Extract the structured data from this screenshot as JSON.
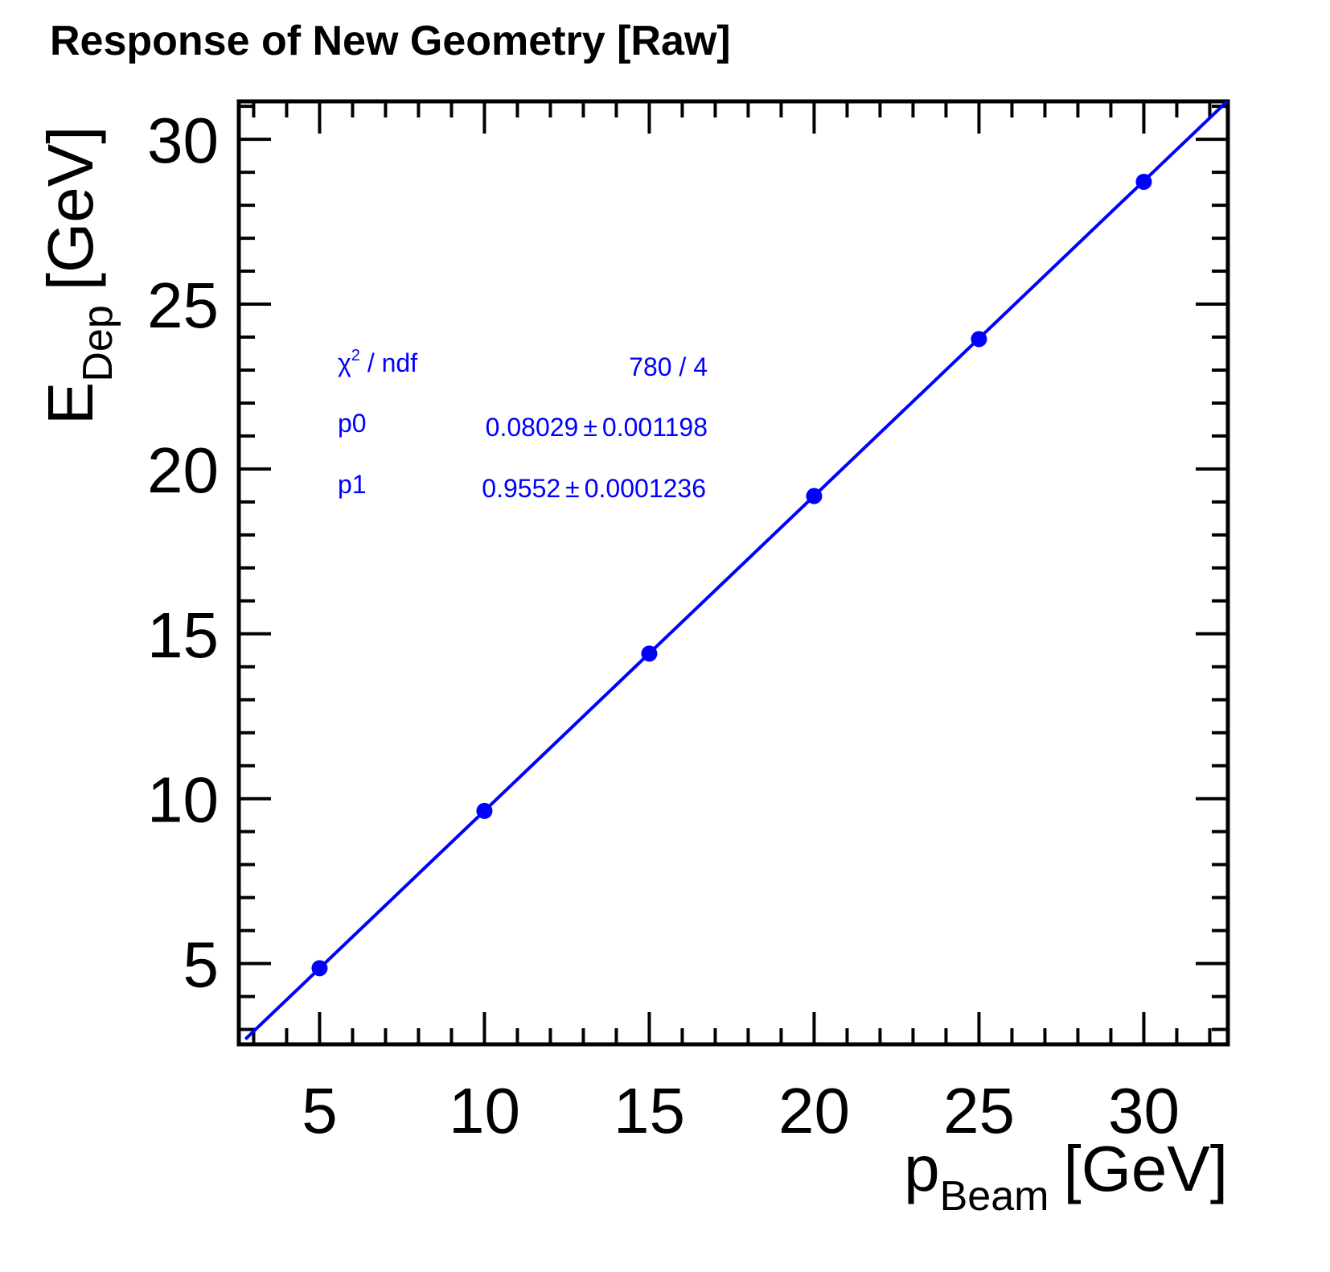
{
  "chart_data": {
    "type": "scatter",
    "title": "Response of New Geometry [Raw]",
    "xlabel": {
      "main": "p",
      "sub": "Beam",
      "unit": "[GeV]"
    },
    "ylabel": {
      "main": "E",
      "sub": "Dep",
      "unit": "[GeV]"
    },
    "xlim": [
      2.55,
      32.55
    ],
    "ylim": [
      2.55,
      31.15
    ],
    "x_major_ticks": [
      5,
      10,
      15,
      20,
      25,
      30
    ],
    "y_major_ticks": [
      5,
      10,
      15,
      20,
      25,
      30
    ],
    "x_tick_labels": [
      "5",
      "10",
      "15",
      "20",
      "25",
      "30"
    ],
    "y_tick_labels": [
      "5",
      "10",
      "15",
      "20",
      "25",
      "30"
    ],
    "minor_tick_step": 1,
    "series": [
      {
        "x": [
          5,
          10,
          15,
          20,
          25,
          30
        ],
        "y": [
          4.86,
          9.63,
          14.4,
          19.18,
          23.94,
          28.71
        ],
        "color": "#0000ff"
      }
    ],
    "fit": {
      "form": "linear",
      "intercept": 0.08029,
      "slope": 0.9552,
      "color": "#0000ff"
    },
    "stats_box": {
      "chi2_label": "χ",
      "chi2_sup": "2",
      "chi2_rest": " / ndf",
      "chi2_value": "780 / 4",
      "p0_label": "p0",
      "p0_value": "0.08029",
      "p0_err": "0.001198",
      "p1_label": "p1",
      "p1_value": "0.9552",
      "p1_err": "0.0001236",
      "pm_symbol": "±",
      "color": "#0000ff"
    },
    "grid": false,
    "legend": "none"
  }
}
